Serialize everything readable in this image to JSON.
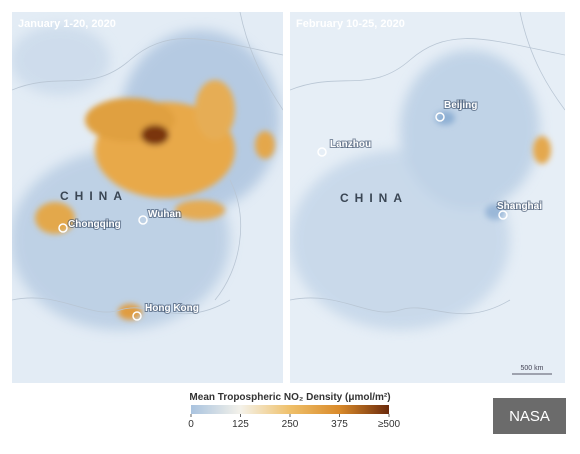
{
  "panels": [
    {
      "title": "January 1-20, 2020",
      "country": "CHINA",
      "cities": [
        "Chongqing",
        "Wuhan",
        "Hong Kong"
      ]
    },
    {
      "title": "February 10-25, 2020",
      "country": "CHINA",
      "cities": [
        "Lanzhou",
        "Beijing",
        "Shanghai"
      ],
      "scale_bar": "500 km"
    }
  ],
  "colorbar": {
    "title": "Mean Tropospheric NO₂ Density (μmol/m²)",
    "range": [
      0,
      500
    ],
    "ticks": [
      0,
      125,
      250,
      375,
      {
        "value": 500,
        "label": "≥500"
      }
    ]
  },
  "credit": "NASA"
}
